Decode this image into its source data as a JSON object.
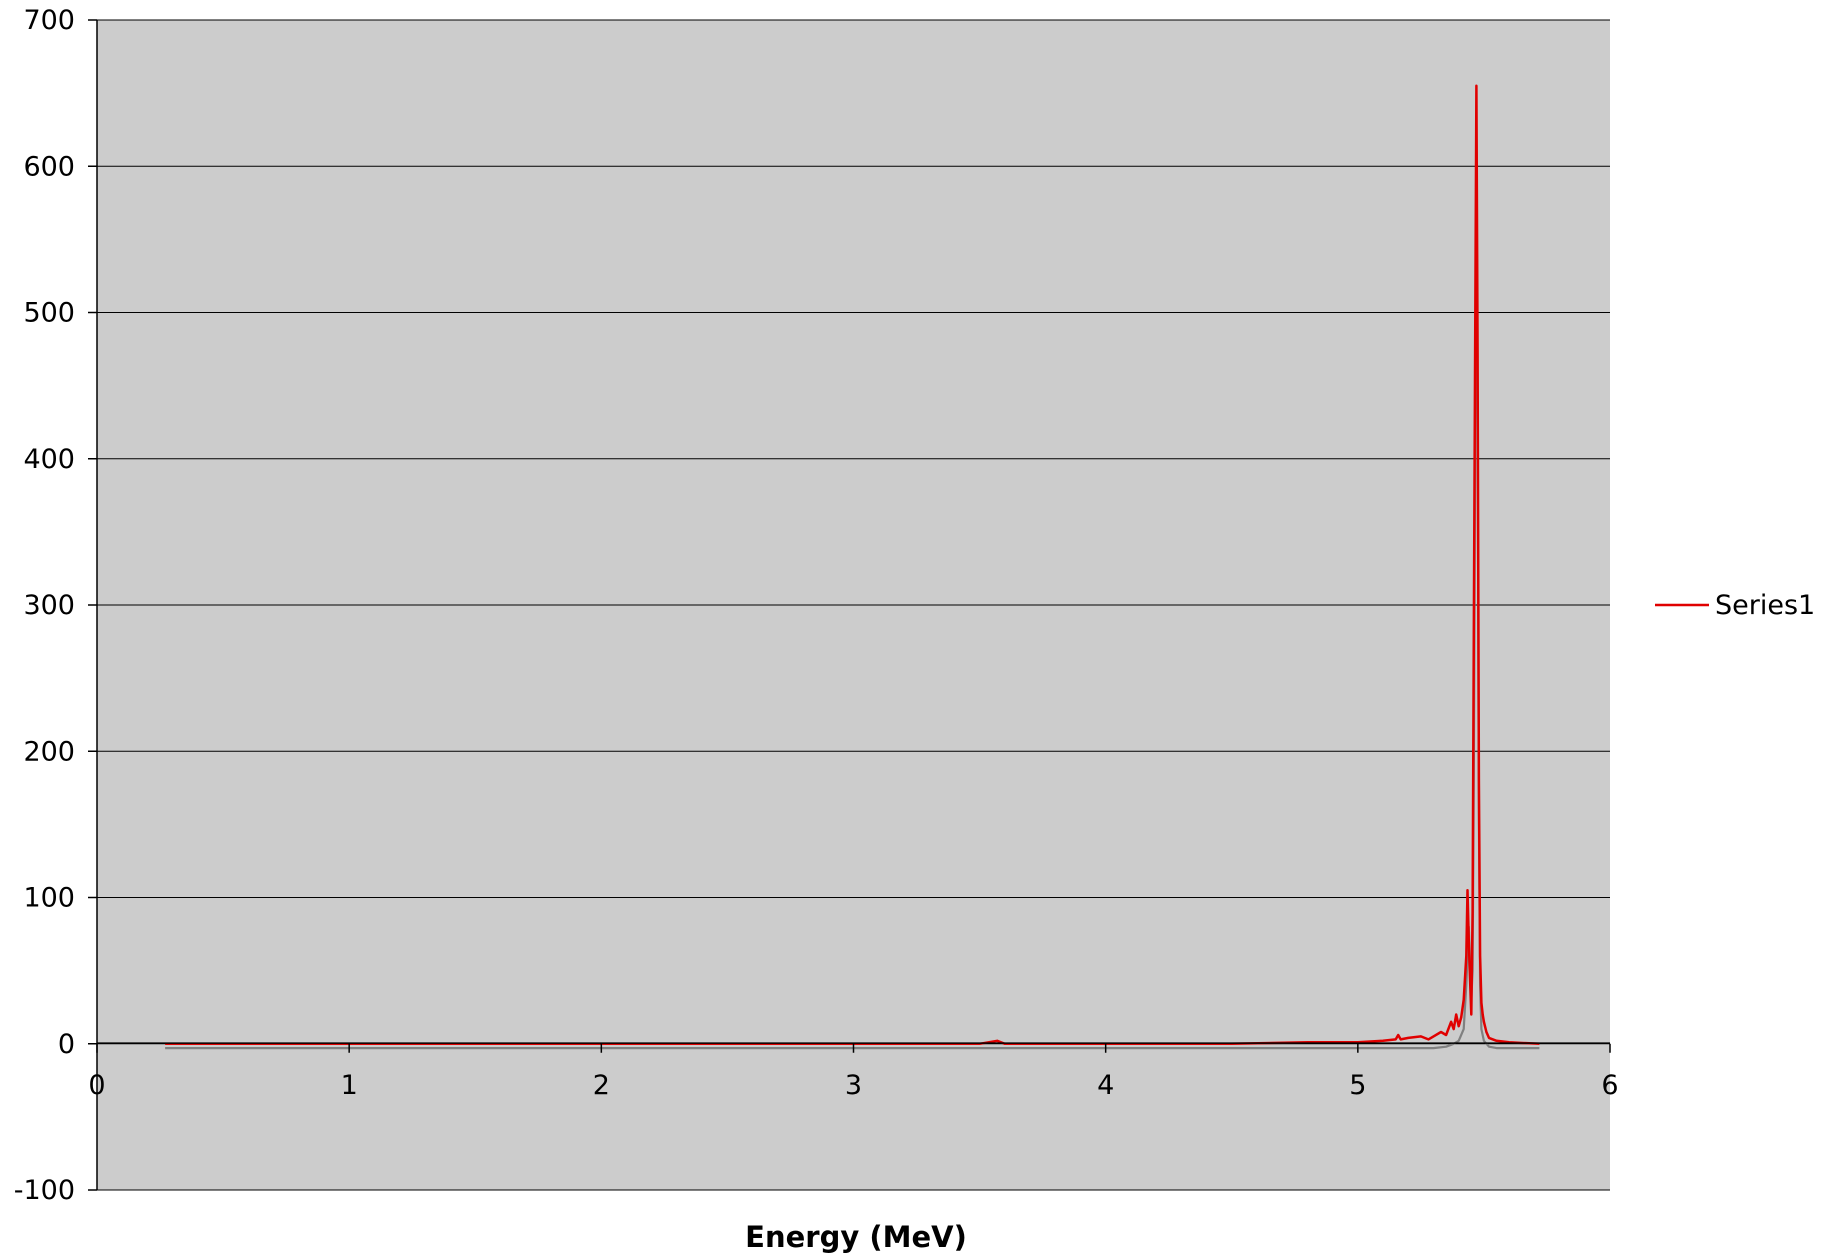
{
  "chart_data": {
    "type": "line",
    "title": "",
    "xlabel": "Energy (MeV)",
    "ylabel": "",
    "xlim": [
      0,
      6
    ],
    "ylim": [
      -100,
      700
    ],
    "x_ticks": [
      0,
      1,
      2,
      3,
      4,
      5,
      6
    ],
    "y_ticks": [
      -100,
      0,
      100,
      200,
      300,
      400,
      500,
      600,
      700
    ],
    "grid": "horizontal",
    "legend_position": "right",
    "plot_background": "#cccccc",
    "series": [
      {
        "name": "Series1",
        "color": "#e00000",
        "x": [
          0.27,
          0.5,
          1.0,
          1.5,
          2.0,
          2.5,
          3.0,
          3.5,
          3.57,
          3.6,
          4.0,
          4.5,
          4.8,
          5.0,
          5.1,
          5.15,
          5.16,
          5.17,
          5.2,
          5.25,
          5.28,
          5.3,
          5.33,
          5.35,
          5.37,
          5.38,
          5.39,
          5.4,
          5.41,
          5.42,
          5.43,
          5.435,
          5.44,
          5.445,
          5.45,
          5.455,
          5.46,
          5.465,
          5.47,
          5.475,
          5.48,
          5.485,
          5.49,
          5.495,
          5.5,
          5.51,
          5.52,
          5.55,
          5.6,
          5.72
        ],
        "y": [
          0,
          0,
          0,
          0,
          0,
          0,
          0,
          0,
          2,
          0,
          0,
          0,
          1,
          1,
          2,
          3,
          6,
          3,
          4,
          5,
          3,
          5,
          8,
          6,
          15,
          10,
          20,
          12,
          18,
          30,
          60,
          105,
          70,
          45,
          20,
          90,
          280,
          470,
          655,
          470,
          180,
          60,
          28,
          20,
          15,
          8,
          4,
          2,
          1,
          0
        ]
      },
      {
        "color": "#808080",
        "x": [
          0.27,
          1.0,
          2.0,
          3.0,
          4.0,
          5.0,
          5.2,
          5.3,
          5.35,
          5.38,
          5.4,
          5.42,
          5.43,
          5.44,
          5.45,
          5.455,
          5.46,
          5.465,
          5.47,
          5.475,
          5.48,
          5.485,
          5.49,
          5.5,
          5.52,
          5.55,
          5.72
        ],
        "y": [
          -3,
          -3,
          -3,
          -3,
          -3,
          -3,
          -3,
          -3,
          -2,
          0,
          2,
          10,
          40,
          80,
          30,
          50,
          180,
          400,
          620,
          420,
          150,
          40,
          10,
          2,
          -2,
          -3,
          -3
        ]
      }
    ]
  }
}
